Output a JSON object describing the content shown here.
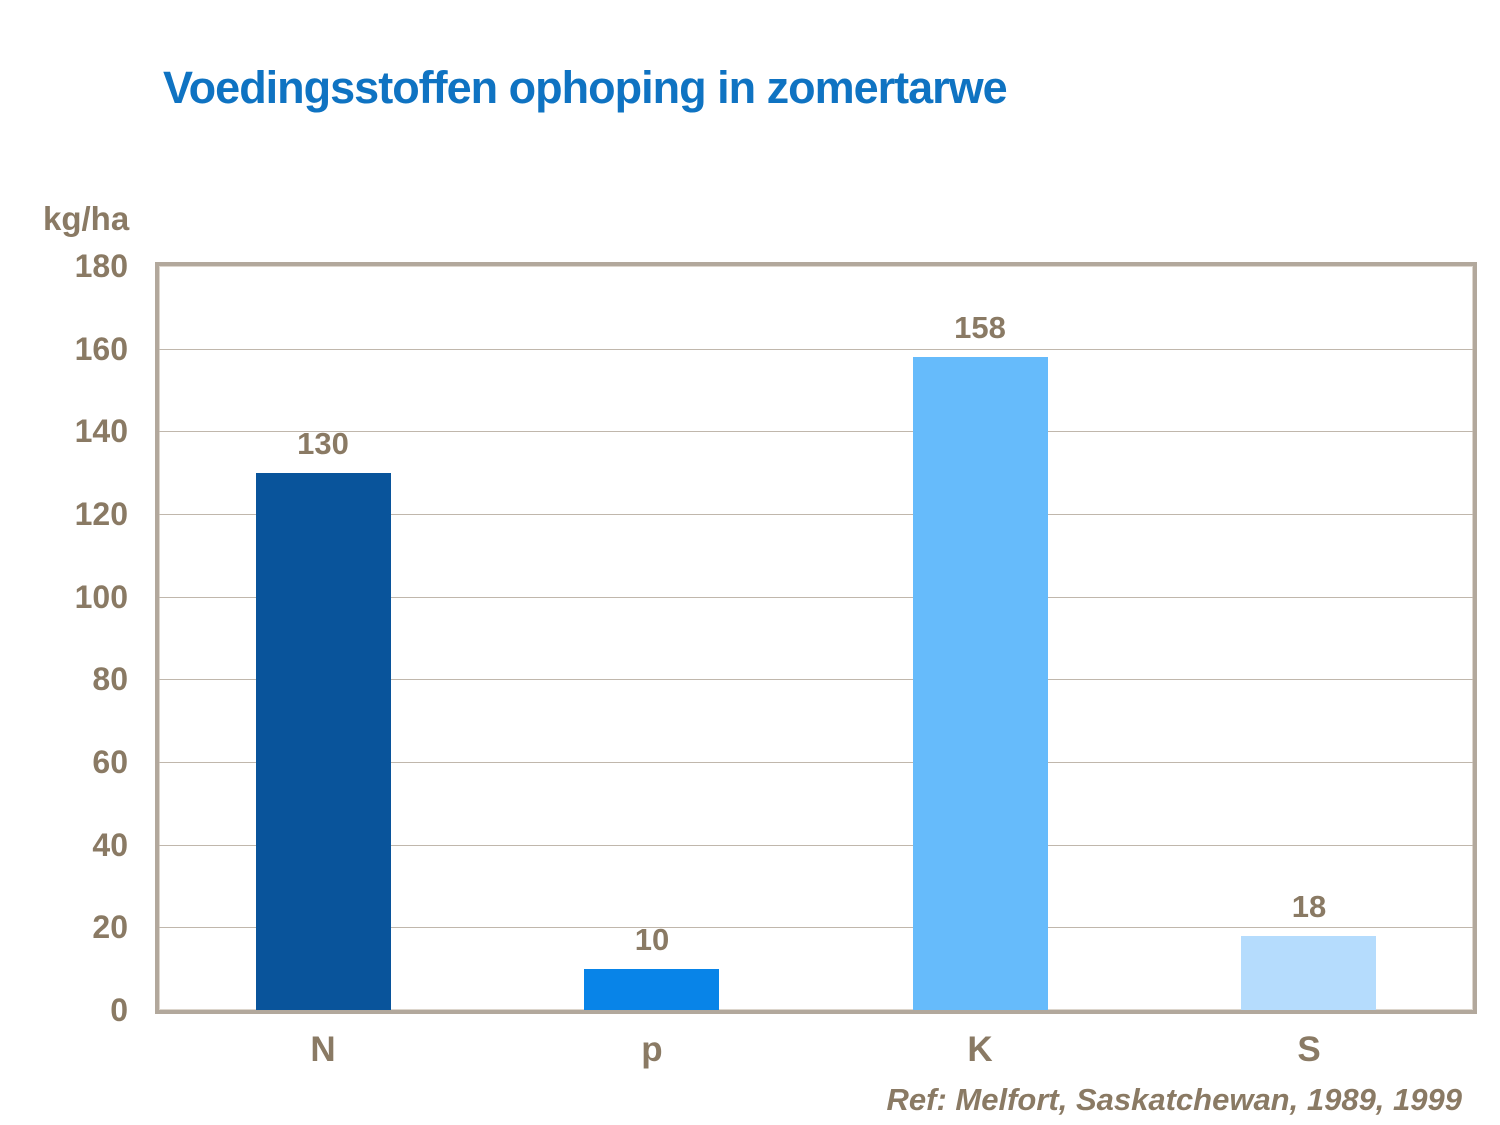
{
  "slide": {
    "title": "Voedingsstoffen ophoping in zomertarwe",
    "reference": "Ref: Melfort, Saskatchewan, 1989, 1999"
  },
  "chart_data": {
    "type": "bar",
    "title": "Voedingsstoffen ophoping in zomertarwe",
    "categories": [
      "N",
      "p",
      "K",
      "S"
    ],
    "values": [
      130,
      10,
      158,
      18
    ],
    "data_labels": [
      "130",
      "10",
      "158",
      "18"
    ],
    "bar_colors": [
      "#09549b",
      "#0884e8",
      "#66bbfb",
      "#b5dcfd"
    ],
    "ylabel": "kg/ha",
    "xlabel": "",
    "ylim": [
      0,
      180
    ],
    "ytick_step": 20,
    "grid": true,
    "legend": false
  },
  "colors": {
    "title_text": "#0f73c2",
    "axis_text": "#8a7a64",
    "plot_border": "#b2a89c",
    "gridline": "#c0b7ac",
    "background": "#ffffff"
  }
}
